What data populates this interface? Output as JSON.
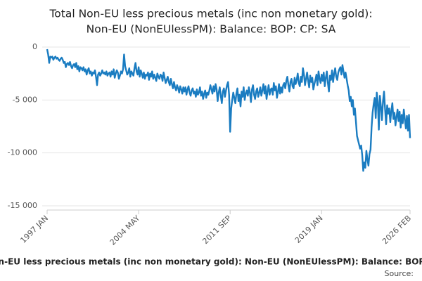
{
  "chart_data": {
    "type": "line",
    "title": "Total Non-EU less precious metals (inc non monetary gold):",
    "subtitle": "Non-EU (NonEUlessPM): Balance: BOP: CP: SA",
    "footer_title": "Total Non-EU less precious metals (inc non monetary gold): Non-EU (NonEUlessPM): Balance: BOP: CP: SA",
    "source": "Source:",
    "ylim": [
      -15000,
      0
    ],
    "yticks": [
      {
        "value": -15000,
        "label": "-15 000"
      },
      {
        "value": -10000,
        "label": "-10 000"
      },
      {
        "value": -5000,
        "label": "-5 000"
      },
      0
    ],
    "grid": true,
    "categories": [
      "1997 JAN",
      null,
      null,
      null,
      null,
      null,
      null,
      null,
      null,
      null,
      null,
      null,
      null,
      null,
      null,
      null,
      null,
      null,
      null,
      null,
      null,
      null,
      null,
      null,
      null,
      null,
      null,
      null,
      null,
      null,
      null,
      null,
      null,
      null,
      null,
      null,
      null,
      null,
      null,
      null,
      null,
      null,
      null,
      null,
      null,
      null,
      null,
      null,
      null,
      null,
      null,
      null,
      null,
      null,
      null,
      null,
      null,
      null,
      null,
      null,
      null,
      null,
      null,
      null,
      null,
      null,
      null,
      null,
      null,
      null,
      null,
      null,
      null,
      null,
      null,
      null,
      null,
      null,
      null,
      null,
      null,
      null,
      null,
      null,
      null,
      null,
      null,
      null,
      "2004 MAY",
      null,
      null,
      null,
      null,
      null,
      null,
      null,
      null,
      null,
      null,
      null,
      null,
      null,
      null,
      null,
      null,
      null,
      null,
      null,
      null,
      null,
      null,
      null,
      null,
      null,
      null,
      null,
      null,
      null,
      null,
      null,
      null,
      null,
      null,
      null,
      null,
      null,
      null,
      null,
      null,
      null,
      null,
      null,
      null,
      null,
      null,
      null,
      null,
      null,
      null,
      null,
      null,
      null,
      null,
      null,
      null,
      null,
      null,
      null,
      null,
      null,
      null,
      null,
      null,
      null,
      null,
      null,
      null,
      null,
      null,
      null,
      null,
      null,
      null,
      null,
      null,
      null,
      null,
      null,
      null,
      null,
      null,
      null,
      null,
      null,
      null,
      null,
      "2011 SEP",
      null,
      null,
      null,
      null,
      null,
      null,
      null,
      null,
      null,
      null,
      null,
      null,
      null,
      null,
      null,
      null,
      null,
      null,
      null,
      null,
      null,
      null,
      null,
      null,
      null,
      null,
      null,
      null,
      null,
      null,
      null,
      null,
      null,
      null,
      null,
      null,
      null,
      null,
      null,
      null,
      null,
      null,
      null,
      null,
      null,
      null,
      null,
      null,
      null,
      null,
      null,
      null,
      null,
      null,
      null,
      null,
      null,
      null,
      null,
      null,
      null,
      null,
      null,
      null,
      null,
      null,
      null,
      null,
      null,
      null,
      null,
      null,
      null,
      null,
      null,
      null,
      null,
      null,
      null,
      null,
      null,
      null,
      null,
      null,
      null,
      null,
      null,
      "2019 JAN",
      null,
      null,
      null,
      null,
      null,
      null,
      null,
      null,
      null,
      null,
      null,
      null,
      null,
      null,
      null,
      null,
      null,
      null,
      null,
      null,
      null,
      null,
      null,
      null,
      null,
      null,
      null,
      null,
      null,
      null,
      null,
      null,
      null,
      null,
      null,
      null,
      null,
      null,
      null,
      null,
      null,
      null,
      null,
      null,
      null,
      null,
      null,
      null,
      null,
      null,
      null,
      null,
      null,
      null,
      null,
      null,
      null,
      null,
      null,
      null,
      null,
      null,
      null,
      null,
      null,
      null,
      null,
      null,
      null,
      null,
      null,
      null,
      null,
      null,
      null,
      null,
      null,
      null,
      null,
      null,
      null,
      null,
      null,
      null,
      "2026 FEB"
    ],
    "series": [
      {
        "color": "#1a7cc1",
        "values": [
          -200,
          -700,
          -1500,
          -900,
          -1000,
          -900,
          -1200,
          -1000,
          -900,
          -1100,
          -1000,
          -1200,
          -1300,
          -1100,
          -1000,
          -1200,
          -1500,
          -1400,
          -1900,
          -1600,
          -1500,
          -1700,
          -1400,
          -1800,
          -2000,
          -1700,
          -1600,
          -1900,
          -1500,
          -2100,
          -1800,
          -2300,
          -1900,
          -2000,
          -2200,
          -1900,
          -2300,
          -2100,
          -2600,
          -2200,
          -2000,
          -2500,
          -2300,
          -2700,
          -2400,
          -2500,
          -2200,
          -2800,
          -3600,
          -2600,
          -2400,
          -2700,
          -2500,
          -2200,
          -2500,
          -2400,
          -2600,
          -2300,
          -2700,
          -2500,
          -2400,
          -2800,
          -2300,
          -2600,
          -2100,
          -2900,
          -2500,
          -2200,
          -2400,
          -3000,
          -2700,
          -2300,
          -2500,
          -2100,
          -700,
          -1800,
          -2200,
          -2600,
          -2400,
          -2000,
          -2800,
          -2300,
          -2500,
          -2700,
          -2000,
          -1500,
          -2300,
          -2600,
          -1900,
          -2800,
          -2200,
          -2500,
          -2900,
          -2400,
          -3000,
          -2600,
          -2700,
          -2400,
          -3100,
          -2500,
          -2800,
          -2300,
          -3000,
          -2600,
          -2900,
          -3200,
          -2500,
          -2800,
          -3000,
          -2600,
          -2700,
          -3200,
          -2400,
          -2900,
          -3400,
          -3100,
          -2800,
          -3300,
          -3600,
          -3000,
          -3500,
          -3900,
          -3300,
          -3800,
          -4100,
          -3600,
          -3900,
          -4300,
          -3700,
          -4000,
          -4400,
          -3800,
          -4200,
          -3800,
          -4500,
          -4000,
          -3700,
          -4300,
          -4600,
          -4100,
          -3900,
          -4400,
          -4200,
          -4700,
          -4000,
          -4500,
          -4300,
          -3800,
          -4600,
          -4200,
          -4900,
          -4400,
          -4100,
          -4800,
          -4300,
          -4500,
          -4100,
          -3600,
          -4000,
          -4400,
          -3700,
          -4200,
          -3500,
          -4000,
          -5100,
          -4300,
          -3800,
          -4600,
          -5300,
          -4200,
          -3900,
          -4700,
          -4100,
          -3600,
          -3300,
          -4500,
          -8000,
          -5800,
          -5000,
          -4300,
          -4800,
          -5300,
          -4400,
          -3900,
          -5100,
          -4500,
          -5600,
          -4200,
          -4700,
          -3800,
          -5000,
          -4400,
          -4100,
          -4600,
          -3800,
          -4300,
          -5200,
          -4000,
          -3600,
          -4500,
          -4900,
          -4200,
          -3900,
          -4700,
          -4300,
          -3800,
          -4600,
          -4100,
          -3500,
          -4400,
          -3700,
          -4900,
          -4200,
          -3600,
          -4500,
          -4000,
          -3900,
          -4500,
          -3400,
          -4100,
          -3700,
          -4800,
          -4200,
          -3500,
          -4400,
          -3800,
          -4300,
          -3600,
          -3400,
          -3900,
          -3200,
          -2800,
          -3600,
          -4200,
          -3300,
          -3000,
          -3700,
          -3900,
          -2900,
          -3500,
          -3100,
          -2500,
          -3400,
          -3700,
          -2800,
          -3300,
          -2000,
          -2600,
          -3600,
          -3000,
          -2400,
          -3200,
          -3800,
          -2700,
          -3300,
          -2900,
          -4000,
          -3500,
          -3100,
          -2600,
          -3600,
          -2300,
          -3000,
          -3400,
          -2600,
          -3200,
          -2400,
          -3700,
          -2900,
          -2300,
          -3400,
          -4200,
          -2700,
          -3100,
          -2200,
          -3300,
          -2500,
          -2000,
          -2800,
          -3100,
          -2400,
          -2100,
          -1900,
          -2600,
          -1700,
          -2300,
          -2900,
          -2400,
          -3000,
          -3600,
          -4100,
          -5100,
          -4700,
          -5600,
          -5000,
          -6400,
          -5800,
          -7100,
          -8400,
          -8800,
          -9200,
          -9600,
          -9300,
          -10200,
          -11700,
          -10900,
          -11400,
          -9800,
          -10600,
          -11200,
          -10100,
          -9700,
          -7600,
          -6200,
          -5400,
          -4800,
          -6700,
          -4300,
          -5200,
          -7800,
          -4600,
          -5600,
          -6900,
          -5100,
          -4200,
          -5900,
          -7300,
          -5500,
          -6300,
          -5800,
          -7100,
          -6000,
          -5300,
          -6800,
          -6200,
          -7400,
          -6600,
          -5900,
          -7000,
          -6100,
          -7600,
          -6400,
          -7200,
          -5900,
          -6800,
          -7700,
          -6500,
          -7900,
          -6400,
          -8600
        ]
      }
    ]
  }
}
